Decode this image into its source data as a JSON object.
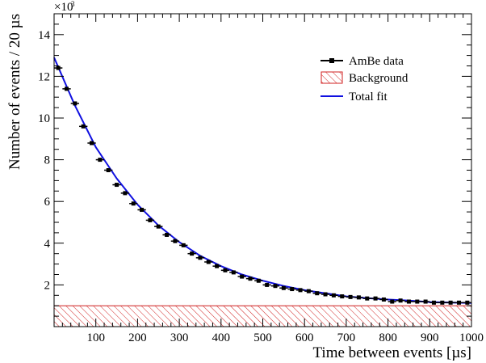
{
  "chart_data": {
    "type": "line",
    "title": "",
    "xlabel": "Time between events [µs]",
    "ylabel": "Number of events / 20 µs",
    "y_multiplier_label": "×10",
    "y_multiplier_exponent": "3",
    "xlim": [
      0,
      1000
    ],
    "ylim": [
      0,
      15
    ],
    "x_ticks": [
      100,
      200,
      300,
      400,
      500,
      600,
      700,
      800,
      900,
      1000
    ],
    "y_ticks": [
      2,
      4,
      6,
      8,
      10,
      12,
      14
    ],
    "grid": false,
    "legend_placement": "top-right",
    "legend": [
      {
        "label": "AmBe data",
        "style": "marker-line",
        "color": "#000000"
      },
      {
        "label": "Background",
        "style": "hatched-box",
        "color": "#d02020"
      },
      {
        "label": "Total fit",
        "style": "line",
        "color": "#1010e0"
      }
    ],
    "series": [
      {
        "name": "AmBe data",
        "x": [
          10,
          30,
          50,
          70,
          90,
          110,
          130,
          150,
          170,
          190,
          210,
          230,
          250,
          270,
          290,
          310,
          330,
          350,
          370,
          390,
          410,
          430,
          450,
          470,
          490,
          510,
          530,
          550,
          570,
          590,
          610,
          630,
          650,
          670,
          690,
          710,
          730,
          750,
          770,
          790,
          810,
          830,
          850,
          870,
          890,
          910,
          930,
          950,
          970,
          990
        ],
        "values": [
          12.4,
          11.4,
          10.7,
          9.6,
          8.8,
          8.0,
          7.5,
          6.8,
          6.4,
          5.9,
          5.6,
          5.1,
          4.8,
          4.4,
          4.1,
          3.9,
          3.5,
          3.3,
          3.1,
          2.9,
          2.7,
          2.6,
          2.4,
          2.3,
          2.2,
          2.0,
          1.95,
          1.85,
          1.8,
          1.75,
          1.7,
          1.6,
          1.55,
          1.5,
          1.45,
          1.42,
          1.4,
          1.35,
          1.35,
          1.3,
          1.2,
          1.25,
          1.2,
          1.2,
          1.2,
          1.15,
          1.15,
          1.15,
          1.15,
          1.15
        ]
      },
      {
        "name": "Total fit",
        "x": [
          0,
          50,
          100,
          150,
          200,
          250,
          300,
          350,
          400,
          450,
          500,
          550,
          600,
          650,
          700,
          750,
          800,
          850,
          900,
          950,
          1000
        ],
        "values": [
          12.9,
          10.6,
          8.6,
          7.1,
          5.85,
          4.85,
          4.05,
          3.4,
          2.9,
          2.5,
          2.2,
          1.95,
          1.75,
          1.6,
          1.45,
          1.37,
          1.3,
          1.25,
          1.18,
          1.15,
          1.13
        ]
      }
    ],
    "background_level": 1.0,
    "colors": {
      "data": "#000000",
      "fit": "#1010e0",
      "background": "#d02020"
    }
  }
}
